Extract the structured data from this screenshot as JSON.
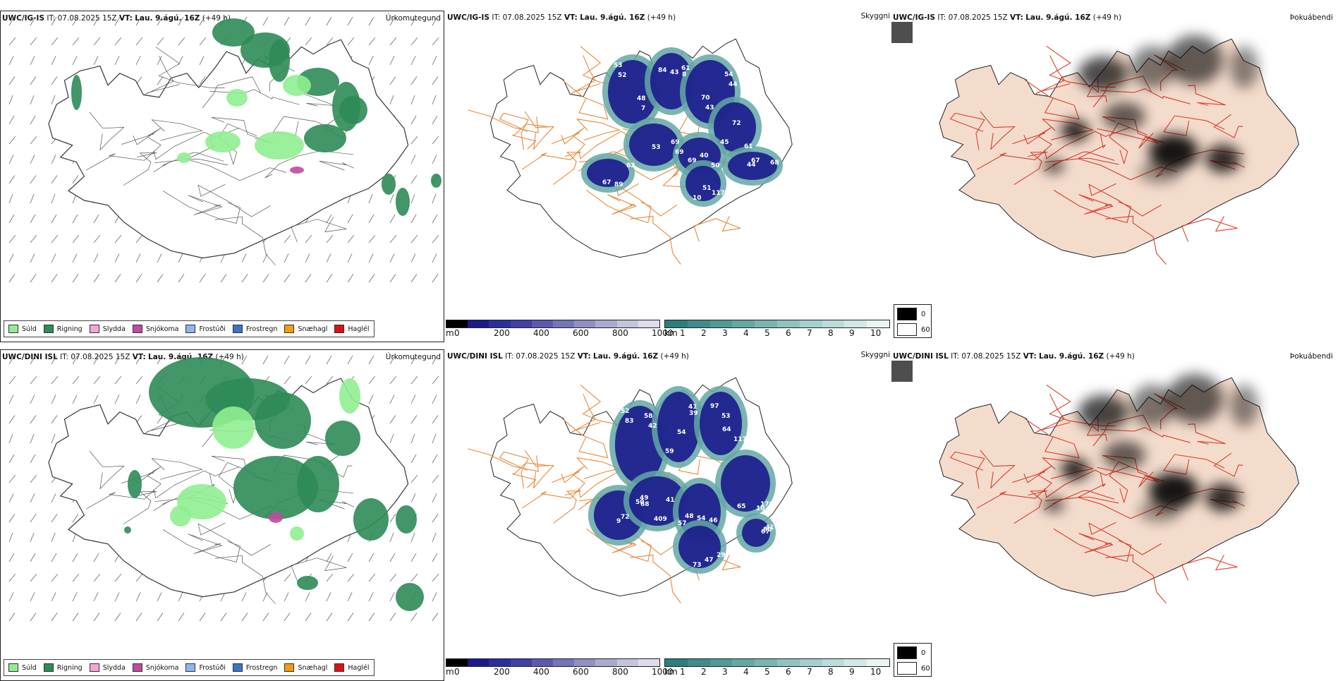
{
  "rows": [
    {
      "header": {
        "model": "UWC/IG-IS",
        "it_label": "IT:",
        "it_value": "07.08.2025 15Z",
        "vt_label": "VT:",
        "vt_value": "Lau. 9.ágú. 16Z",
        "lead": "(+49 h)"
      },
      "precip_title": "Úrkomutegund",
      "cloud_title": "Skyggni",
      "fog_title": "Þokuábendi",
      "precip_patches": "ig",
      "visibility_labels": [
        "53",
        "8",
        "70",
        "69",
        "62",
        "61",
        "40",
        "44",
        "51",
        "48",
        "43",
        "54",
        "53",
        "89",
        "72",
        "69",
        "68",
        "117",
        "52",
        "84",
        "43",
        "69",
        "67",
        "45",
        "50",
        "67",
        "10",
        "7",
        "61",
        "44"
      ]
    },
    {
      "header": {
        "model": "UWC/DINI ISL",
        "it_label": "IT:",
        "it_value": "07.08.2025 15Z",
        "vt_label": "VT:",
        "vt_value": "Lau. 9.ágú. 16Z",
        "lead": "(+49 h)"
      },
      "precip_title": "Úrkomutegund",
      "cloud_title": "Skyggni",
      "fog_title": "Þokuábendi",
      "precip_patches": "dini",
      "visibility_labels": [
        "52",
        "39",
        "64",
        "50",
        "68",
        "46",
        "10",
        "67",
        "29",
        "58",
        "54",
        "97",
        "9",
        "57",
        "54",
        "65",
        "80",
        "47",
        "83",
        "59",
        "117",
        "49",
        "41",
        "48",
        "176",
        "41",
        "73",
        "42",
        "41",
        "53",
        "72",
        "409"
      ]
    }
  ],
  "precip_legend": [
    {
      "label": "Súld",
      "color": "#90ee90"
    },
    {
      "label": "Rigning",
      "color": "#2e8b57"
    },
    {
      "label": "Slydda",
      "color": "#f4a6d7"
    },
    {
      "label": "Snjókoma",
      "color": "#c04aa0"
    },
    {
      "label": "Frostúði",
      "color": "#8ab8f0"
    },
    {
      "label": "Frostregn",
      "color": "#3a76c4"
    },
    {
      "label": "Snæhagl",
      "color": "#f39c12"
    },
    {
      "label": "Haglél",
      "color": "#e01010"
    }
  ],
  "height_scale": {
    "unit": "m",
    "ticks": [
      "0",
      "200",
      "400",
      "600",
      "800",
      "1000"
    ],
    "colors": [
      "#000000",
      "#1a1a8c",
      "#2a2ea0",
      "#4040a8",
      "#5a5ab0",
      "#7474b8",
      "#9090c4",
      "#aaaad0",
      "#c4c4dc",
      "#dcdcec"
    ]
  },
  "vis_scale": {
    "unit": "km",
    "ticks": [
      "1",
      "2",
      "3",
      "4",
      "5",
      "6",
      "7",
      "8",
      "9",
      "10"
    ],
    "colors": [
      "#2e7d7d",
      "#3f8c8a",
      "#519a98",
      "#63a8a5",
      "#78b5b2",
      "#8ec3c0",
      "#a4d0cd",
      "#bbdcda",
      "#d2e8e6",
      "#eaf4f3"
    ]
  },
  "cloud_legend": [
    {
      "label": "0",
      "color": "#000000"
    },
    {
      "label": "60",
      "color": "#ffffff"
    }
  ],
  "colors": {
    "land": "#f4dccd",
    "roads_orange": "#e8893a",
    "roads_red": "#e0402a",
    "rivers": "#7a8ef0"
  }
}
